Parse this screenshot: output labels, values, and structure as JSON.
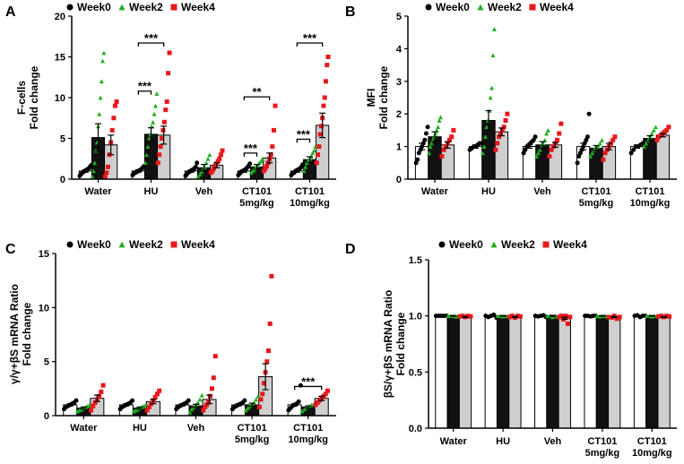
{
  "colors": {
    "week0": "#000000",
    "week2": "#1fae1f",
    "week4": "#e8181c",
    "bar0": "#ffffff",
    "bar1": "#111111",
    "bar2": "#cfcfcf",
    "axis": "#000000"
  },
  "legend": [
    "Week0",
    "Week2",
    "Week4"
  ],
  "categories": [
    "Water",
    "HU",
    "Veh",
    "CT101\n5mg/kg",
    "CT101\n10mg/kg"
  ],
  "chart_data": [
    {
      "panel": "A",
      "type": "bar",
      "title": "",
      "ylabel_lines": [
        "F-cells",
        "Fold change"
      ],
      "ylim": [
        0,
        20
      ],
      "yticks": [
        0,
        5,
        10,
        15,
        20
      ],
      "categories": [
        "Water",
        "HU",
        "Veh",
        "CT101\n5mg/kg",
        "CT101\n10mg/kg"
      ],
      "series": [
        {
          "name": "Week0",
          "values": [
            1.0,
            1.0,
            1.0,
            1.0,
            1.0
          ],
          "err": [
            0.15,
            0.15,
            0.15,
            0.15,
            0.15
          ]
        },
        {
          "name": "Week2",
          "values": [
            5.1,
            5.5,
            1.4,
            1.5,
            2.4
          ],
          "err": [
            1.7,
            0.8,
            0.4,
            0.3,
            0.35
          ]
        },
        {
          "name": "Week4",
          "values": [
            4.2,
            5.4,
            1.7,
            2.6,
            6.6
          ],
          "err": [
            1.2,
            1.1,
            0.3,
            0.6,
            1.5
          ]
        }
      ],
      "points": [
        [
          [
            0.4,
            0.6,
            0.8,
            0.9,
            1.0,
            1.1,
            1.2,
            1.3,
            1.5,
            1.7
          ],
          [
            0.3,
            1.0,
            2.0,
            3.5,
            4.5,
            6.5,
            8.0,
            10.0,
            12.0,
            14.5,
            15.5
          ],
          [
            0.3,
            0.8,
            1.5,
            3.0,
            4.5,
            6.0,
            7.5,
            9.0,
            9.5
          ]
        ],
        [
          [
            0.5,
            0.7,
            0.8,
            0.9,
            1.0,
            1.1,
            1.2,
            1.4,
            1.6
          ],
          [
            2.0,
            3.0,
            4.0,
            5.0,
            5.5,
            6.5,
            7.0,
            8.0,
            9.0,
            10.5
          ],
          [
            2.0,
            3.0,
            4.0,
            5.0,
            6.0,
            7.0,
            8.5,
            9.5,
            13.0,
            15.5
          ]
        ],
        [
          [
            0.4,
            0.6,
            0.8,
            0.9,
            1.0,
            1.1,
            1.2,
            1.3,
            1.5,
            2.0
          ],
          [
            0.3,
            0.6,
            0.9,
            1.2,
            1.5,
            2.0,
            2.5,
            3.0
          ],
          [
            0.8,
            1.0,
            1.3,
            1.6,
            1.9,
            2.2,
            2.5,
            3.0,
            3.5
          ]
        ],
        [
          [
            0.5,
            0.7,
            0.9,
            1.0,
            1.1,
            1.2,
            1.4,
            1.6,
            1.9
          ],
          [
            0.8,
            1.0,
            1.2,
            1.5,
            1.7,
            2.0,
            2.2,
            2.5
          ],
          [
            1.0,
            1.3,
            1.6,
            2.0,
            2.5,
            3.0,
            4.0,
            6.0,
            9.0
          ]
        ],
        [
          [
            0.5,
            0.7,
            0.8,
            1.0,
            1.1,
            1.2,
            1.3,
            1.5,
            1.8
          ],
          [
            1.0,
            1.5,
            2.0,
            2.3,
            2.5,
            2.8,
            3.2,
            3.5,
            4.0
          ],
          [
            2.0,
            3.0,
            4.0,
            5.5,
            6.5,
            7.5,
            9.0,
            10.0,
            12.0,
            14.0,
            15.0
          ]
        ]
      ],
      "sig": [
        {
          "label": "***",
          "group": 1,
          "from": 0,
          "to": 1,
          "at": 10.8
        },
        {
          "label": "***",
          "group": 1,
          "from": 0,
          "to": 2,
          "at": 16.7
        },
        {
          "label": "***",
          "group": 3,
          "from": 0,
          "to": 1,
          "at": 3.2
        },
        {
          "label": "**",
          "group": 3,
          "from": 0,
          "to": 2,
          "at": 10.1
        },
        {
          "label": "***",
          "group": 4,
          "from": 0,
          "to": 1,
          "at": 4.9
        },
        {
          "label": "***",
          "group": 4,
          "from": 0,
          "to": 2,
          "at": 16.7
        }
      ]
    },
    {
      "panel": "B",
      "type": "bar",
      "title": "",
      "ylabel_lines": [
        "MFI",
        "Fold change"
      ],
      "ylim": [
        0,
        5
      ],
      "yticks": [
        0,
        1,
        2,
        3,
        4,
        5
      ],
      "categories": [
        "Water",
        "HU",
        "Veh",
        "CT101\n5mg/kg",
        "CT101\n10mg/kg"
      ],
      "series": [
        {
          "name": "Week0",
          "values": [
            1.0,
            1.0,
            1.0,
            1.0,
            1.0
          ],
          "err": [
            0.1,
            0.05,
            0.05,
            0.1,
            0.05
          ]
        },
        {
          "name": "Week2",
          "values": [
            1.3,
            1.8,
            1.05,
            0.95,
            1.25
          ],
          "err": [
            0.15,
            0.3,
            0.1,
            0.08,
            0.08
          ]
        },
        {
          "name": "Week4",
          "values": [
            1.05,
            1.45,
            1.05,
            1.0,
            1.35
          ],
          "err": [
            0.1,
            0.12,
            0.07,
            0.1,
            0.05
          ]
        }
      ],
      "points": [
        [
          [
            0.5,
            0.6,
            0.8,
            0.9,
            1.0,
            1.1,
            1.2,
            1.4,
            1.6
          ],
          [
            0.8,
            1.0,
            1.1,
            1.2,
            1.3,
            1.4,
            1.5,
            1.6,
            1.8,
            1.9
          ],
          [
            0.7,
            0.9,
            1.0,
            1.1,
            1.2,
            1.3,
            1.5
          ]
        ],
        [
          [
            0.9,
            0.95,
            1.0,
            1.0,
            1.05,
            1.1,
            1.1
          ],
          [
            0.8,
            1.0,
            1.3,
            1.6,
            1.8,
            2.1,
            2.5,
            2.8,
            3.8,
            4.6
          ],
          [
            0.9,
            1.1,
            1.3,
            1.4,
            1.5,
            1.6,
            1.8,
            2.0
          ]
        ],
        [
          [
            0.8,
            0.9,
            1.0,
            1.05,
            1.1,
            1.15,
            1.2,
            1.3
          ],
          [
            0.7,
            0.8,
            0.9,
            1.0,
            1.1,
            1.2,
            1.4,
            1.5
          ],
          [
            0.7,
            0.9,
            1.0,
            1.1,
            1.2,
            1.4,
            1.7
          ]
        ],
        [
          [
            0.5,
            0.7,
            0.8,
            0.9,
            1.0,
            1.1,
            1.2,
            1.3,
            2.0
          ],
          [
            0.7,
            0.8,
            0.9,
            1.0,
            1.0,
            1.1,
            1.2
          ],
          [
            0.6,
            0.8,
            0.9,
            1.0,
            1.1,
            1.2,
            1.3
          ]
        ],
        [
          [
            0.8,
            0.9,
            1.0,
            1.0,
            1.05,
            1.1
          ],
          [
            1.0,
            1.1,
            1.2,
            1.3,
            1.4,
            1.5,
            1.6
          ],
          [
            1.2,
            1.3,
            1.35,
            1.4,
            1.45,
            1.5,
            1.6
          ]
        ]
      ],
      "sig": []
    },
    {
      "panel": "C",
      "type": "bar",
      "title": "",
      "ylabel_lines": [
        "γ/γ+βS mRNA Ratio",
        "Fold change"
      ],
      "ylim": [
        0,
        15
      ],
      "yticks": [
        0,
        5,
        10,
        15
      ],
      "categories": [
        "Water",
        "HU",
        "Veh",
        "CT101\n5mg/kg",
        "CT101\n10mg/kg"
      ],
      "series": [
        {
          "name": "Week0",
          "values": [
            1.0,
            1.0,
            1.0,
            1.0,
            1.0
          ],
          "err": [
            0.1,
            0.1,
            0.1,
            0.1,
            0.1
          ]
        },
        {
          "name": "Week2",
          "values": [
            0.7,
            0.7,
            0.9,
            1.0,
            0.8
          ],
          "err": [
            0.1,
            0.1,
            0.15,
            0.15,
            0.1
          ]
        },
        {
          "name": "Week4",
          "values": [
            1.6,
            1.3,
            1.5,
            3.6,
            1.6
          ],
          "err": [
            0.3,
            0.2,
            0.4,
            1.2,
            0.2
          ]
        }
      ],
      "points": [
        [
          [
            0.6,
            0.8,
            0.9,
            1.0,
            1.1,
            1.2,
            1.4
          ],
          [
            0.4,
            0.5,
            0.6,
            0.7,
            0.8,
            0.9,
            1.0
          ],
          [
            0.5,
            0.9,
            1.2,
            1.5,
            1.8,
            2.2,
            2.8
          ]
        ],
        [
          [
            0.6,
            0.8,
            0.9,
            1.0,
            1.1,
            1.2,
            1.4
          ],
          [
            0.4,
            0.5,
            0.6,
            0.7,
            0.8,
            0.9,
            1.0
          ],
          [
            0.5,
            0.8,
            1.1,
            1.4,
            1.7,
            2.0,
            2.3
          ]
        ],
        [
          [
            0.6,
            0.8,
            0.9,
            1.0,
            1.1,
            1.2,
            1.4
          ],
          [
            0.3,
            0.6,
            0.8,
            1.0,
            1.2,
            1.5,
            1.9
          ],
          [
            0.5,
            0.8,
            1.0,
            1.3,
            1.8,
            2.5,
            3.5,
            5.5
          ]
        ],
        [
          [
            0.6,
            0.8,
            0.9,
            1.0,
            1.1,
            1.2,
            1.4
          ],
          [
            0.5,
            0.7,
            0.9,
            1.0,
            1.2,
            1.5,
            1.8
          ],
          [
            0.8,
            1.5,
            2.0,
            3.0,
            4.0,
            5.0,
            6.0,
            8.5,
            12.9
          ]
        ],
        [
          [
            0.5,
            0.7,
            0.9,
            1.0,
            1.1,
            1.3,
            2.8
          ],
          [
            0.4,
            0.6,
            0.8,
            0.9,
            1.0,
            1.1
          ],
          [
            1.0,
            1.2,
            1.4,
            1.6,
            1.8,
            2.0,
            2.3
          ]
        ]
      ],
      "sig": [
        {
          "label": "***",
          "group": 4,
          "from": 0,
          "to": 2,
          "at": 2.7
        }
      ]
    },
    {
      "panel": "D",
      "type": "bar",
      "title": "",
      "ylabel_lines": [
        "βS/γ+βS mRNA Ratio",
        "Fold change"
      ],
      "ylim": [
        0,
        1.5
      ],
      "yticks": [
        0.0,
        0.5,
        1.0,
        1.5
      ],
      "ytick_decimals": 1,
      "categories": [
        "Water",
        "HU",
        "Veh",
        "CT101\n5mg/kg",
        "CT101\n10mg/kg"
      ],
      "series": [
        {
          "name": "Week0",
          "values": [
            1.0,
            1.0,
            1.0,
            1.0,
            1.0
          ],
          "err": [
            0.003,
            0.005,
            0.005,
            0.003,
            0.005
          ]
        },
        {
          "name": "Week2",
          "values": [
            1.0,
            1.0,
            1.0,
            1.0,
            1.0
          ],
          "err": [
            0.003,
            0.003,
            0.005,
            0.003,
            0.003
          ]
        },
        {
          "name": "Week4",
          "values": [
            0.99,
            0.99,
            0.98,
            0.99,
            0.99
          ],
          "err": [
            0.005,
            0.005,
            0.01,
            0.005,
            0.005
          ]
        }
      ],
      "points": [
        [
          [
            1.0,
            1.0,
            1.0,
            1.0,
            1.0
          ],
          [
            1.0,
            1.0,
            1.0,
            0.995,
            1.0
          ],
          [
            0.995,
            1.0,
            0.99,
            1.0,
            0.995
          ]
        ],
        [
          [
            1.0,
            0.99,
            1.0,
            1.01,
            0.985
          ],
          [
            1.0,
            1.0,
            0.995,
            1.0,
            1.0
          ],
          [
            0.99,
            1.0,
            0.985,
            1.0,
            0.995
          ]
        ],
        [
          [
            1.0,
            0.995,
            1.0,
            1.005,
            0.99
          ],
          [
            1.0,
            1.0,
            0.99,
            1.0,
            0.995
          ],
          [
            0.99,
            1.0,
            0.97,
            1.0,
            0.93,
            0.99
          ]
        ],
        [
          [
            1.0,
            1.0,
            0.995,
            1.0,
            1.0
          ],
          [
            1.0,
            0.995,
            1.0,
            1.0,
            0.995
          ],
          [
            0.99,
            0.985,
            1.0,
            0.975,
            0.99
          ]
        ],
        [
          [
            1.0,
            1.005,
            0.99,
            1.0,
            1.0
          ],
          [
            1.0,
            1.0,
            0.995,
            1.0,
            1.0
          ],
          [
            0.995,
            1.0,
            0.99,
            1.0,
            0.995
          ]
        ]
      ],
      "sig": []
    }
  ]
}
